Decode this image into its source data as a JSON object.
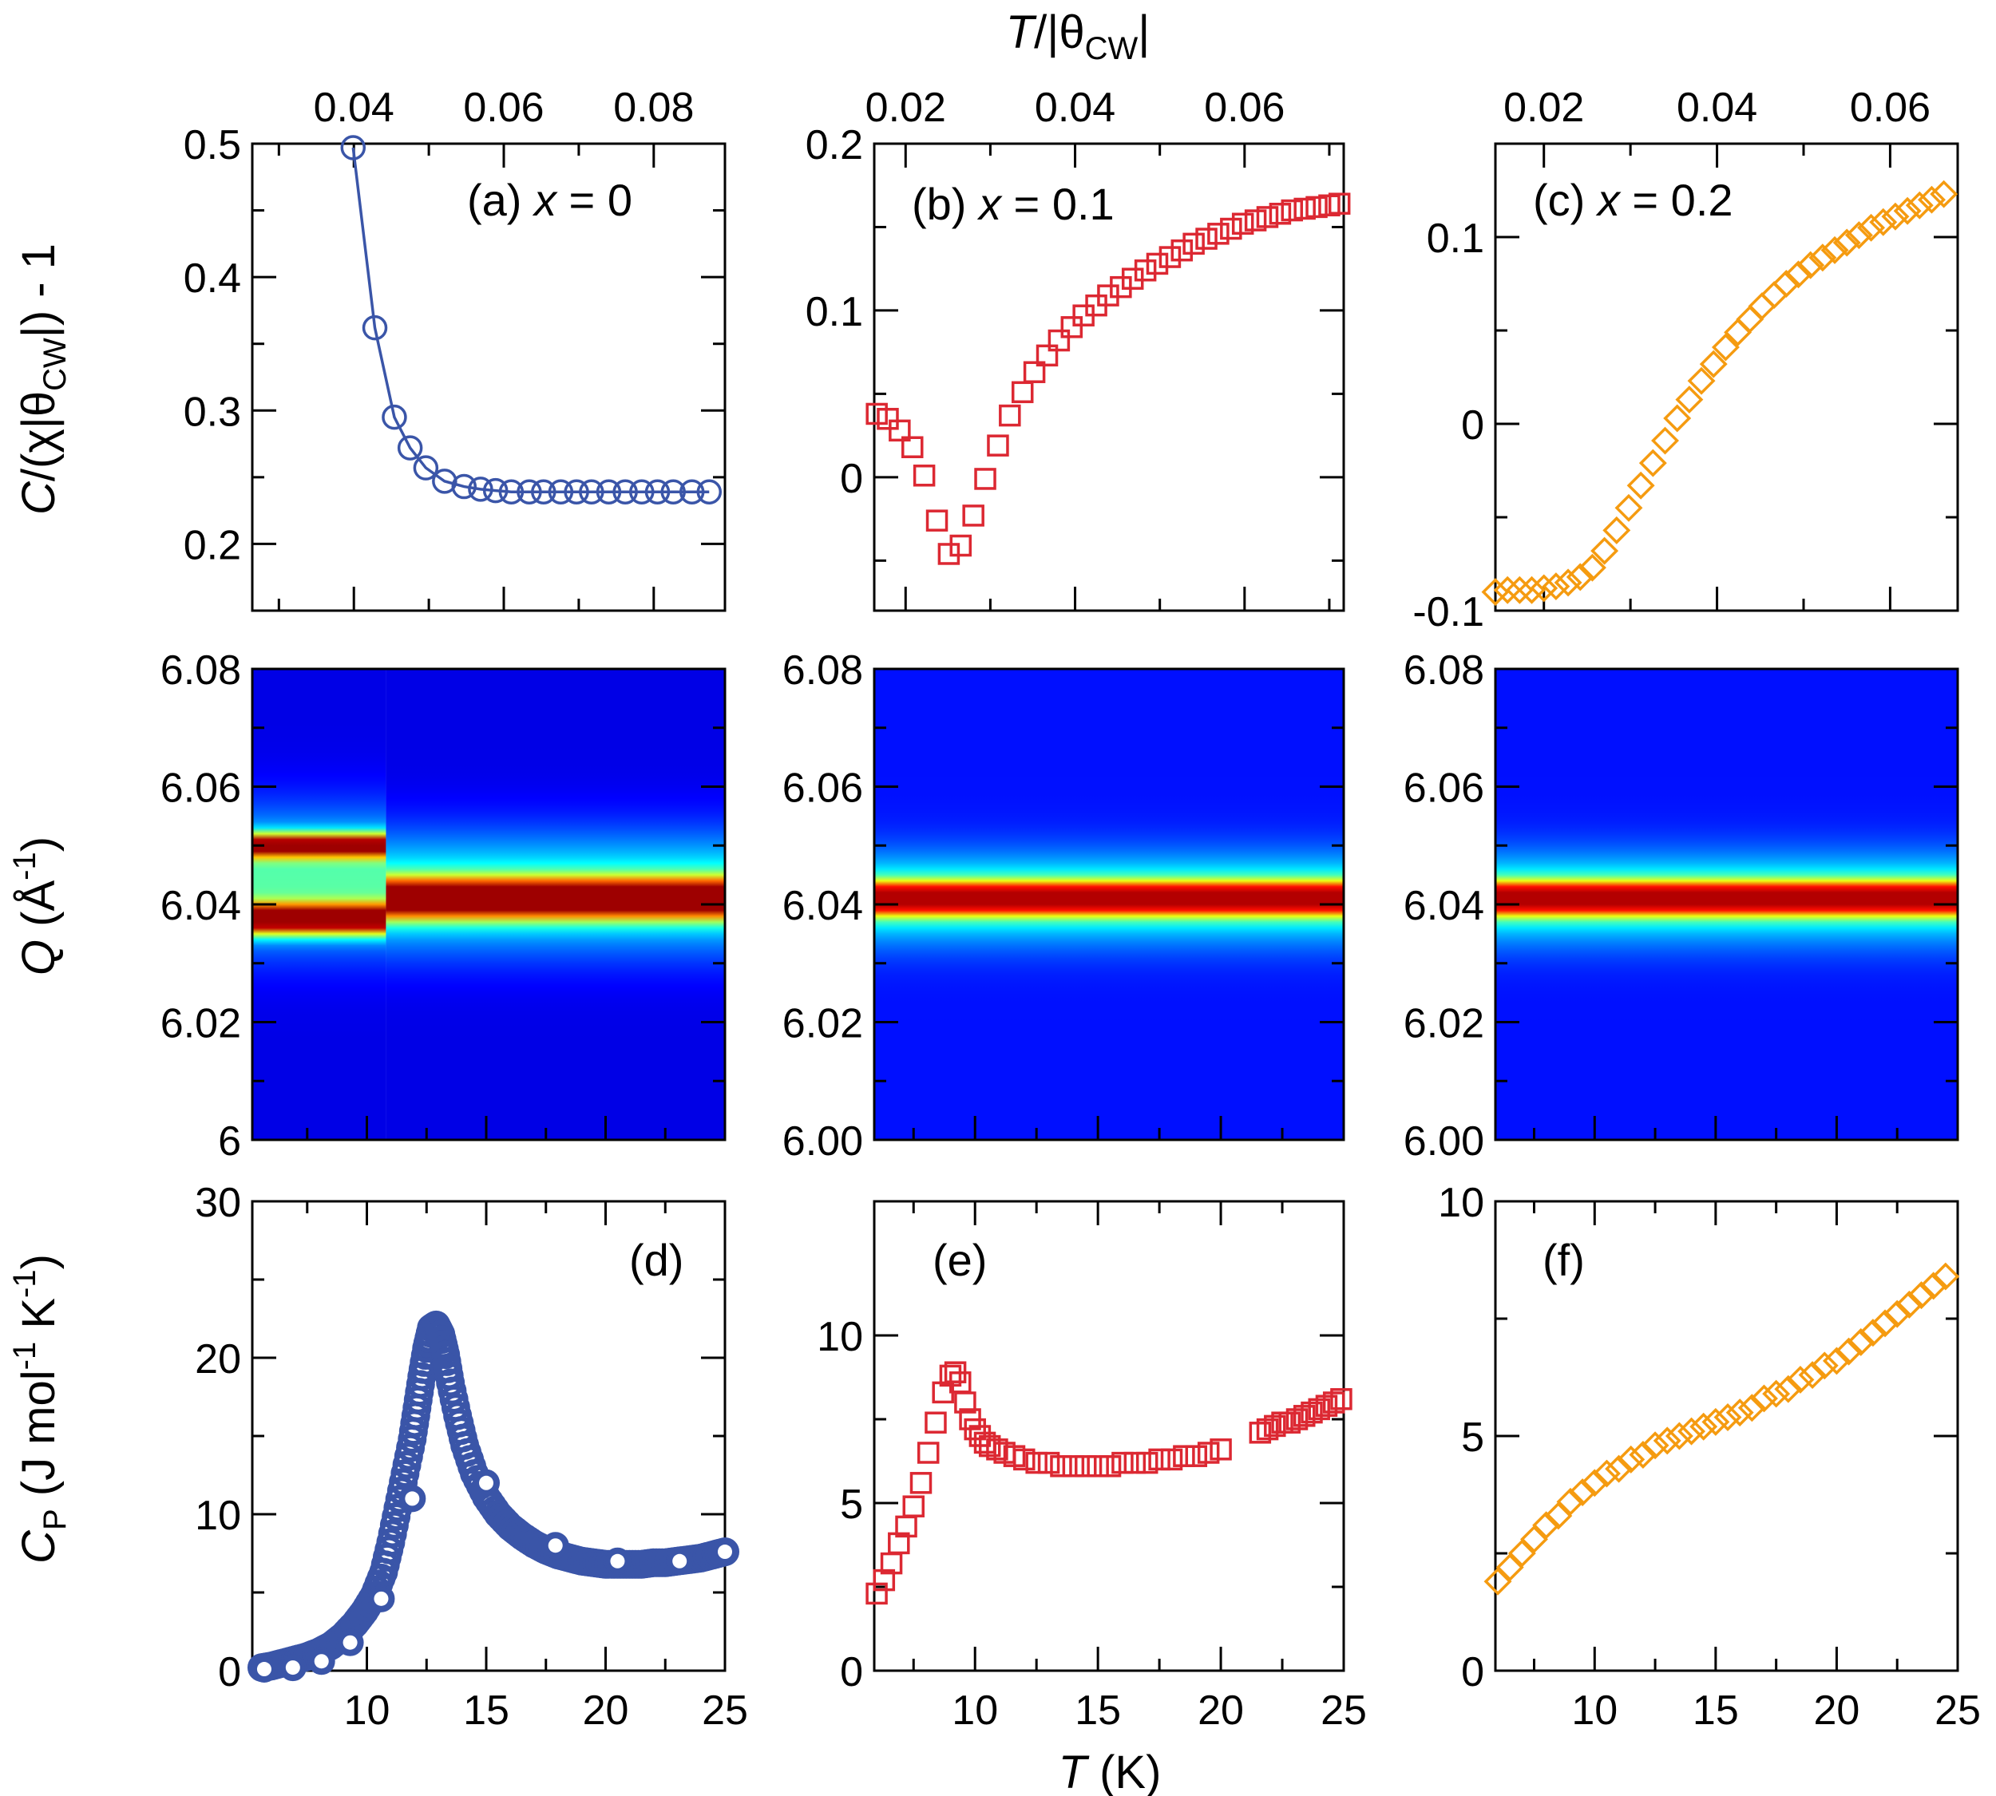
{
  "figure": {
    "top_axis_label": "T/|θCW|",
    "bottom_axis_label": "T (K)",
    "row_labels": {
      "top": "C/(χ|θCW|) - 1",
      "middle": "Q (Å-1)",
      "bottom": "CP (J mol-1 K-1)"
    }
  },
  "colors": {
    "x0": "#3a55a8",
    "x01": "#dc2832",
    "x02": "#f59b10"
  },
  "chart_data": [
    {
      "id": "a",
      "type": "line",
      "label": "(a)",
      "composition": "x = 0",
      "marker": "circle-open",
      "color": "#3a55a8",
      "connected": true,
      "xlim": [
        0.02645,
        0.0895
      ],
      "ylim": [
        0.15,
        0.5
      ],
      "top_ticks": [
        "0.04",
        "0.06",
        "0.08"
      ],
      "top_tick_values": [
        0.04,
        0.06,
        0.08
      ],
      "y_ticks": [
        "0.2",
        "0.3",
        "0.4",
        "0.5"
      ],
      "y_tick_values": [
        0.2,
        0.3,
        0.4,
        0.5
      ],
      "x": [
        0.0399,
        0.0428,
        0.0454,
        0.0475,
        0.0496,
        0.0521,
        0.0547,
        0.0569,
        0.0589,
        0.061,
        0.0634,
        0.0653,
        0.0676,
        0.0697,
        0.0717,
        0.074,
        0.0762,
        0.0784,
        0.0805,
        0.0826,
        0.0851,
        0.0874
      ],
      "y": [
        0.497,
        0.362,
        0.295,
        0.272,
        0.257,
        0.247,
        0.243,
        0.241,
        0.24,
        0.239,
        0.239,
        0.239,
        0.239,
        0.239,
        0.239,
        0.239,
        0.239,
        0.239,
        0.239,
        0.239,
        0.239,
        0.239
      ]
    },
    {
      "id": "b",
      "type": "scatter",
      "label": "(b)",
      "composition": "x = 0.1",
      "marker": "square-open",
      "color": "#dc2832",
      "xlim": [
        0.0163,
        0.0717
      ],
      "ylim": [
        -0.08,
        0.2
      ],
      "top_ticks": [
        "0.02",
        "0.04",
        "0.06"
      ],
      "top_tick_values": [
        0.02,
        0.04,
        0.06
      ],
      "y_ticks": [
        "0",
        "0.1",
        "0.2"
      ],
      "y_tick_values": [
        0,
        0.1,
        0.2
      ],
      "x": [
        0.0166,
        0.0179,
        0.0193,
        0.0208,
        0.0222,
        0.0237,
        0.0251,
        0.0265,
        0.028,
        0.0294,
        0.0309,
        0.0323,
        0.0338,
        0.0352,
        0.0367,
        0.0381,
        0.0396,
        0.041,
        0.0425,
        0.0439,
        0.0454,
        0.0468,
        0.0483,
        0.0497,
        0.0512,
        0.0526,
        0.054,
        0.0555,
        0.0569,
        0.0584,
        0.0598,
        0.0613,
        0.0627,
        0.0642,
        0.0656,
        0.0671,
        0.0685,
        0.07,
        0.0712
      ],
      "y": [
        0.038,
        0.035,
        0.028,
        0.018,
        0.001,
        -0.026,
        -0.046,
        -0.041,
        -0.023,
        -0.001,
        0.019,
        0.037,
        0.051,
        0.063,
        0.073,
        0.082,
        0.09,
        0.097,
        0.103,
        0.109,
        0.114,
        0.119,
        0.124,
        0.128,
        0.132,
        0.136,
        0.14,
        0.143,
        0.146,
        0.149,
        0.152,
        0.154,
        0.156,
        0.158,
        0.16,
        0.161,
        0.162,
        0.163,
        0.164
      ]
    },
    {
      "id": "c",
      "type": "scatter",
      "label": "(c)",
      "composition": "x = 0.2",
      "marker": "diamond-open",
      "color": "#f59b10",
      "xlim": [
        0.0144,
        0.0678
      ],
      "ylim": [
        -0.1,
        0.15
      ],
      "top_ticks": [
        "0.02",
        "0.04",
        "0.06"
      ],
      "top_tick_values": [
        0.02,
        0.04,
        0.06
      ],
      "y_ticks": [
        "-0.1",
        "0",
        "0.1"
      ],
      "y_tick_values": [
        -0.1,
        0,
        0.1
      ],
      "x": [
        0.0144,
        0.0158,
        0.0172,
        0.0186,
        0.02,
        0.0214,
        0.0228,
        0.0242,
        0.0256,
        0.027,
        0.0284,
        0.0298,
        0.0312,
        0.0326,
        0.034,
        0.0354,
        0.0368,
        0.0382,
        0.0396,
        0.041,
        0.0424,
        0.0438,
        0.0452,
        0.0466,
        0.048,
        0.0494,
        0.0508,
        0.0522,
        0.0536,
        0.055,
        0.0564,
        0.0578,
        0.0592,
        0.0606,
        0.062,
        0.0634,
        0.0648,
        0.0662
      ],
      "y": [
        -0.09,
        -0.089,
        -0.089,
        -0.089,
        -0.088,
        -0.087,
        -0.085,
        -0.082,
        -0.077,
        -0.068,
        -0.057,
        -0.045,
        -0.033,
        -0.021,
        -0.009,
        0.003,
        0.013,
        0.023,
        0.032,
        0.041,
        0.049,
        0.056,
        0.063,
        0.069,
        0.075,
        0.08,
        0.085,
        0.089,
        0.093,
        0.097,
        0.101,
        0.105,
        0.108,
        0.111,
        0.114,
        0.117,
        0.12,
        0.123
      ]
    },
    {
      "id": "map-x0",
      "type": "heatmap",
      "composition": "x = 0",
      "xlim": [
        5.2,
        25.0
      ],
      "ylim": [
        6.0,
        6.08
      ],
      "y_ticks": [
        "6",
        "6.02",
        "6.04",
        "6.06",
        "6.08"
      ],
      "y_tick_values": [
        6.0,
        6.02,
        6.04,
        6.06,
        6.08
      ],
      "colormap": "jet",
      "peaks_below_transition": [
        6.0375,
        6.05
      ],
      "peak_above_transition": 6.041,
      "transition_T": 10.8
    },
    {
      "id": "map-x01",
      "type": "heatmap",
      "composition": "x = 0.1",
      "xlim": [
        5.9,
        25.0
      ],
      "ylim": [
        6.0,
        6.08
      ],
      "y_ticks": [
        "6.00",
        "6.02",
        "6.04",
        "6.06",
        "6.08"
      ],
      "y_tick_values": [
        6.0,
        6.02,
        6.04,
        6.06,
        6.08
      ],
      "colormap": "jet",
      "peak": 6.041
    },
    {
      "id": "map-x02",
      "type": "heatmap",
      "composition": "x = 0.2",
      "xlim": [
        5.9,
        25.0
      ],
      "ylim": [
        6.0,
        6.08
      ],
      "y_ticks": [
        "6.00",
        "6.02",
        "6.04",
        "6.06",
        "6.08"
      ],
      "y_tick_values": [
        6.0,
        6.02,
        6.04,
        6.06,
        6.08
      ],
      "colormap": "jet",
      "peak": 6.041
    },
    {
      "id": "d",
      "type": "scatter",
      "label": "(d)",
      "composition": "x = 0",
      "color": "#3a55a8",
      "xlim": [
        5.2,
        25.0
      ],
      "ylim": [
        0,
        30
      ],
      "x_ticks": [
        "10",
        "15",
        "20",
        "25"
      ],
      "x_tick_values": [
        10,
        15,
        20,
        25
      ],
      "y_ticks": [
        "0",
        "10",
        "20",
        "30"
      ],
      "y_tick_values": [
        0,
        10,
        20,
        30
      ],
      "dense_series": {
        "marker": "circle-open",
        "x": [
          5.6,
          6.0,
          6.5,
          7.0,
          7.5,
          8.0,
          8.5,
          9.0,
          9.5,
          9.9,
          10.3,
          10.7,
          11.0,
          11.3,
          11.6,
          11.9,
          12.1,
          12.3,
          12.5,
          12.7,
          12.9,
          13.1,
          13.3,
          13.5,
          13.8,
          14.1,
          14.5,
          15.0,
          15.5,
          16.0,
          16.5,
          17.0,
          17.5,
          18.0,
          18.5,
          19.0,
          19.5,
          20.0,
          20.5,
          21.0,
          21.5,
          22.0,
          22.5,
          23.0,
          23.5,
          24.0,
          24.5,
          25.0
        ],
        "y": [
          0.2,
          0.3,
          0.5,
          0.7,
          0.9,
          1.2,
          1.6,
          2.2,
          3.0,
          3.8,
          4.8,
          6.3,
          8.2,
          10.4,
          12.6,
          14.8,
          16.8,
          18.8,
          20.6,
          21.9,
          22.1,
          21.5,
          20.2,
          18.4,
          16.3,
          14.4,
          12.6,
          11.1,
          10.0,
          9.2,
          8.6,
          8.1,
          7.7,
          7.4,
          7.2,
          7.0,
          6.9,
          6.8,
          6.8,
          6.8,
          6.8,
          6.9,
          6.9,
          7.0,
          7.1,
          7.2,
          7.4,
          7.6
        ]
      },
      "sparse_series": {
        "marker": "circle-filled-white-center",
        "x": [
          5.7,
          6.9,
          8.1,
          9.3,
          10.6,
          11.9,
          15.0,
          17.9,
          20.5,
          23.1,
          25.0
        ],
        "y": [
          0.1,
          0.2,
          0.6,
          1.8,
          4.6,
          11.0,
          12.0,
          8.0,
          7.0,
          7.0,
          7.6
        ]
      }
    },
    {
      "id": "e",
      "type": "scatter",
      "label": "(e)",
      "composition": "x = 0.1",
      "marker": "square-open",
      "color": "#dc2832",
      "xlim": [
        5.9,
        25.0
      ],
      "ylim": [
        0,
        14
      ],
      "x_ticks": [
        "10",
        "15",
        "20",
        "25"
      ],
      "x_tick_values": [
        10,
        15,
        20,
        25
      ],
      "y_ticks": [
        "0",
        "5",
        "10"
      ],
      "y_tick_values": [
        0,
        5,
        10
      ],
      "x": [
        6.0,
        6.3,
        6.6,
        6.9,
        7.2,
        7.5,
        7.8,
        8.1,
        8.4,
        8.7,
        9.0,
        9.2,
        9.4,
        9.6,
        9.8,
        10.0,
        10.2,
        10.4,
        10.6,
        10.9,
        11.2,
        11.6,
        12.0,
        12.5,
        13.0,
        13.5,
        14.0,
        14.5,
        15.0,
        15.5,
        16.0,
        16.5,
        17.0,
        17.5,
        18.0,
        18.5,
        19.0,
        19.5,
        20.0,
        21.6,
        21.9,
        22.2,
        22.5,
        22.8,
        23.1,
        23.4,
        23.7,
        24.0,
        24.3,
        24.6,
        24.9
      ],
      "y": [
        2.3,
        2.7,
        3.2,
        3.8,
        4.3,
        4.9,
        5.6,
        6.5,
        7.4,
        8.3,
        8.8,
        8.9,
        8.6,
        8.0,
        7.5,
        7.2,
        7.0,
        6.8,
        6.7,
        6.6,
        6.5,
        6.4,
        6.3,
        6.2,
        6.2,
        6.1,
        6.1,
        6.1,
        6.1,
        6.1,
        6.2,
        6.2,
        6.2,
        6.3,
        6.3,
        6.4,
        6.4,
        6.5,
        6.6,
        7.1,
        7.2,
        7.3,
        7.4,
        7.4,
        7.5,
        7.6,
        7.7,
        7.8,
        7.9,
        8.0,
        8.1
      ]
    },
    {
      "id": "f",
      "type": "scatter",
      "label": "(f)",
      "composition": "x = 0.2",
      "marker": "diamond-open",
      "color": "#f59b10",
      "xlim": [
        5.9,
        25.0
      ],
      "ylim": [
        0,
        10
      ],
      "x_ticks": [
        "10",
        "15",
        "20",
        "25"
      ],
      "x_tick_values": [
        10,
        15,
        20,
        25
      ],
      "y_ticks": [
        "0",
        "5",
        "10"
      ],
      "y_tick_values": [
        0,
        5,
        10
      ],
      "x": [
        6.0,
        6.5,
        7.0,
        7.5,
        8.0,
        8.5,
        9.0,
        9.5,
        10.0,
        10.5,
        11.0,
        11.5,
        12.0,
        12.5,
        13.0,
        13.5,
        14.0,
        14.5,
        15.0,
        15.5,
        16.0,
        16.5,
        17.0,
        17.5,
        18.0,
        18.5,
        19.0,
        19.5,
        20.0,
        20.5,
        21.0,
        21.5,
        22.0,
        22.5,
        23.0,
        23.5,
        24.0,
        24.5
      ],
      "y": [
        1.9,
        2.2,
        2.5,
        2.8,
        3.1,
        3.3,
        3.6,
        3.8,
        4.0,
        4.2,
        4.3,
        4.5,
        4.6,
        4.8,
        4.9,
        5.0,
        5.1,
        5.2,
        5.3,
        5.4,
        5.5,
        5.6,
        5.8,
        5.9,
        6.0,
        6.2,
        6.3,
        6.5,
        6.6,
        6.8,
        7.0,
        7.2,
        7.4,
        7.6,
        7.8,
        8.0,
        8.2,
        8.4
      ]
    }
  ]
}
